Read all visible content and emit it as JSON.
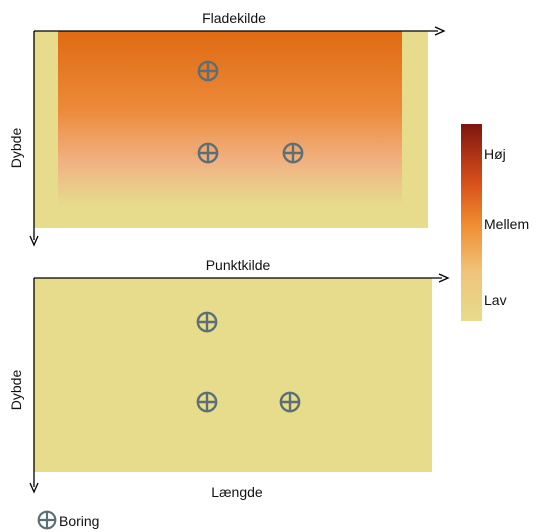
{
  "top_panel": {
    "title": "Fladekilde",
    "y_label": "Dybde"
  },
  "bottom_panel": {
    "title": "Punktkilde",
    "y_label": "Dybde",
    "x_label": "Længde"
  },
  "legend": {
    "high": "Høj",
    "medium": "Mellem",
    "low": "Lav",
    "borehole_label": "Boring"
  },
  "colors": {
    "background_khaki": "#e6dc8c",
    "dark_red": "#8b1a12",
    "orange": "#e8781a",
    "borehole_symbol": "#5b6f75"
  },
  "icons": {
    "borehole": "crosshair-circle-icon"
  }
}
